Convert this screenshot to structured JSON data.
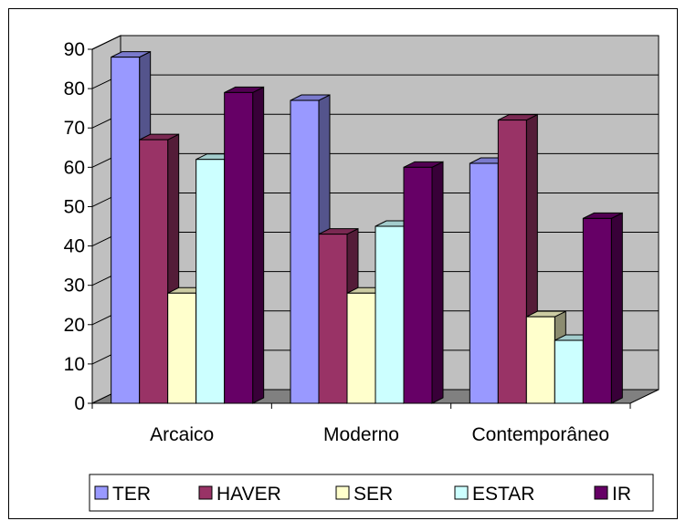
{
  "chart_data": {
    "type": "bar",
    "title": "",
    "xlabel": "",
    "ylabel": "",
    "categories": [
      "Arcaico",
      "Moderno",
      "Contemporâneo"
    ],
    "series": [
      {
        "name": "TER",
        "color": "#9999FF",
        "values": [
          88,
          77,
          61
        ]
      },
      {
        "name": "HAVER",
        "color": "#993366",
        "values": [
          67,
          43,
          72
        ]
      },
      {
        "name": "SER",
        "color": "#FFFFCC",
        "values": [
          28,
          28,
          22
        ]
      },
      {
        "name": "ESTAR",
        "color": "#CCFFFF",
        "values": [
          62,
          45,
          16
        ]
      },
      {
        "name": "IR",
        "color": "#660066",
        "values": [
          79,
          60,
          47
        ]
      }
    ],
    "yticks": [
      "0",
      "10",
      "20",
      "30",
      "40",
      "50",
      "60",
      "70",
      "80",
      "90"
    ],
    "ylim": [
      0,
      90
    ],
    "grid": true,
    "three_d": true,
    "legend_position": "bottom",
    "plot_background": "#C0C0C0",
    "floor_color": "#808080"
  }
}
